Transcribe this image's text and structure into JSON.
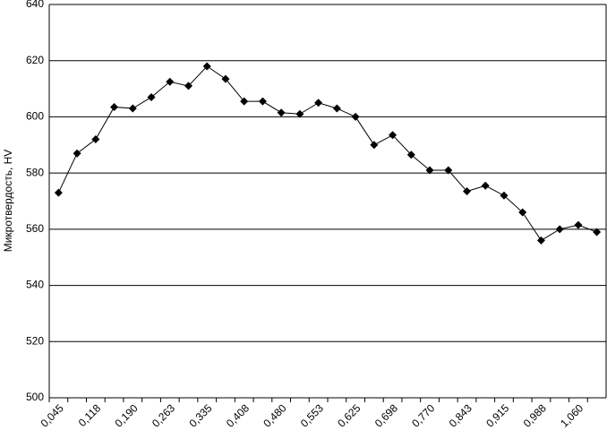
{
  "chart_data": {
    "type": "line",
    "y_label": "Микротвердость, HV",
    "categories": [
      "0,045",
      null,
      "0,118",
      null,
      "0,190",
      null,
      "0,263",
      null,
      "0,335",
      null,
      "0,408",
      null,
      "0,480",
      null,
      "0,553",
      null,
      "0,625",
      null,
      "0,698",
      null,
      "0,770",
      null,
      "0,843",
      null,
      "0,915",
      null,
      "0,988",
      null,
      "1,060",
      null
    ],
    "series": [
      {
        "color": "#000000",
        "values": [
          573,
          587,
          592,
          603.5,
          603,
          607,
          612.5,
          611,
          618,
          613.5,
          605.5,
          605.5,
          601.5,
          601,
          605,
          603,
          600,
          590,
          593.5,
          586.5,
          581,
          581,
          573.5,
          575.5,
          572,
          566,
          556,
          560,
          561.5,
          559
        ]
      }
    ],
    "ylim": [
      500,
      640
    ],
    "yticks": [
      500,
      520,
      540,
      560,
      580,
      600,
      620,
      640
    ],
    "grid": true
  }
}
